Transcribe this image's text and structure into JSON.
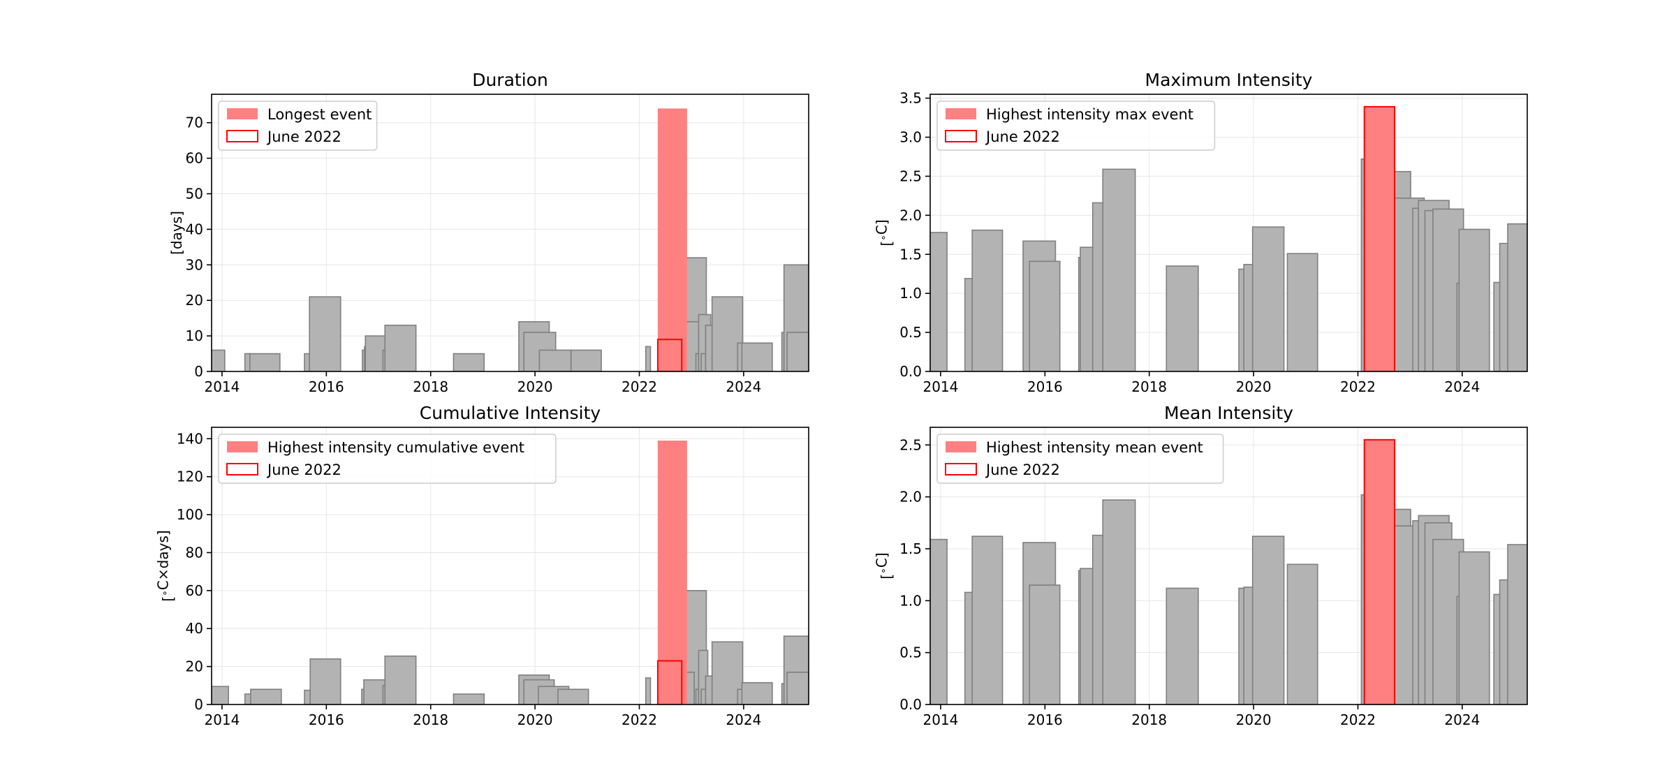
{
  "chart_data": [
    {
      "type": "bar",
      "title": "Duration",
      "ylabel": "[days]",
      "xlabel": "",
      "xlim": [
        "2013-10-20",
        "2025-04-01"
      ],
      "ylim": [
        0,
        78
      ],
      "xticks": [
        "2014",
        "2016",
        "2018",
        "2020",
        "2022",
        "2024"
      ],
      "yticks": [
        0,
        10,
        20,
        30,
        40,
        50,
        60,
        70
      ],
      "grid": true,
      "legend_position": "top-left",
      "legend": [
        "Longest event",
        "June 2022"
      ],
      "events": [
        {
          "start": "2013-10-20",
          "end": "2014-01-20",
          "value": 6
        },
        {
          "start": "2014-06-10",
          "end": "2014-07-20",
          "value": 5
        },
        {
          "start": "2014-07-15",
          "end": "2015-02-10",
          "value": 5
        },
        {
          "start": "2015-08-01",
          "end": "2015-09-05",
          "value": 5
        },
        {
          "start": "2015-09-05",
          "end": "2016-04-10",
          "value": 21
        },
        {
          "start": "2016-09-10",
          "end": "2016-10-10",
          "value": 6
        },
        {
          "start": "2016-09-25",
          "end": "2016-10-25",
          "value": 7
        },
        {
          "start": "2016-10-01",
          "end": "2017-04-10",
          "value": 10
        },
        {
          "start": "2017-02-01",
          "end": "2017-03-01",
          "value": 6
        },
        {
          "start": "2017-02-15",
          "end": "2017-09-20",
          "value": 13
        },
        {
          "start": "2018-06-10",
          "end": "2019-01-10",
          "value": 5
        },
        {
          "start": "2019-09-10",
          "end": "2020-04-10",
          "value": 14
        },
        {
          "start": "2019-10-15",
          "end": "2020-05-25",
          "value": 11
        },
        {
          "start": "2020-02-01",
          "end": "2020-09-10",
          "value": 6
        },
        {
          "start": "2020-09-10",
          "end": "2021-04-10",
          "value": 6
        },
        {
          "start": "2022-02-15",
          "end": "2022-03-20",
          "value": 7
        },
        {
          "start": "2022-09-15",
          "end": "2023-04-15",
          "value": 32
        },
        {
          "start": "2022-10-15",
          "end": "2023-03-01",
          "value": 14
        },
        {
          "start": "2023-02-01",
          "end": "2023-02-20",
          "value": 5
        },
        {
          "start": "2023-02-20",
          "end": "2023-05-15",
          "value": 16
        },
        {
          "start": "2023-03-10",
          "end": "2023-04-10",
          "value": 5
        },
        {
          "start": "2023-04-10",
          "end": "2023-09-01",
          "value": 13
        },
        {
          "start": "2023-05-25",
          "end": "2023-12-25",
          "value": 21
        },
        {
          "start": "2023-11-20",
          "end": "2024-04-20",
          "value": 8
        },
        {
          "start": "2023-12-20",
          "end": "2024-07-20",
          "value": 8
        },
        {
          "start": "2024-09-25",
          "end": "2024-10-20",
          "value": 11
        },
        {
          "start": "2024-10-10",
          "end": "2025-04-10",
          "value": 30
        },
        {
          "start": "2024-11-01",
          "end": "2025-04-01",
          "value": 11
        }
      ],
      "highlight": {
        "label": "Longest event",
        "start": "2022-05-10",
        "end": "2022-12-01",
        "value": 74
      },
      "june_2022": {
        "label": "June 2022",
        "start": "2022-05-10",
        "end": "2022-10-25",
        "value": 9
      }
    },
    {
      "type": "bar",
      "title": "Maximum Intensity",
      "ylabel": "[$^\\circ$C]",
      "xlabel": "",
      "xlim": [
        "2013-10-20",
        "2025-04-01"
      ],
      "ylim": [
        0,
        3.55
      ],
      "xticks": [
        "2014",
        "2016",
        "2018",
        "2020",
        "2022",
        "2024"
      ],
      "yticks": [
        "0.0",
        "0.5",
        "1.0",
        "1.5",
        "2.0",
        "2.5",
        "3.0",
        "3.5"
      ],
      "grid": true,
      "legend_position": "top-left",
      "legend": [
        "Highest intensity max event",
        "June 2022"
      ],
      "events": [
        {
          "start": "2013-10-20",
          "end": "2014-02-15",
          "value": 1.78
        },
        {
          "start": "2014-06-20",
          "end": "2014-09-10",
          "value": 1.19
        },
        {
          "start": "2014-08-10",
          "end": "2015-03-10",
          "value": 1.81
        },
        {
          "start": "2015-08-01",
          "end": "2016-03-15",
          "value": 1.67
        },
        {
          "start": "2015-09-15",
          "end": "2016-04-15",
          "value": 1.41
        },
        {
          "start": "2016-08-25",
          "end": "2016-10-01",
          "value": 1.46
        },
        {
          "start": "2016-09-05",
          "end": "2017-04-05",
          "value": 1.59
        },
        {
          "start": "2016-12-01",
          "end": "2017-06-01",
          "value": 2.16
        },
        {
          "start": "2017-02-10",
          "end": "2017-09-25",
          "value": 2.59
        },
        {
          "start": "2018-05-01",
          "end": "2018-12-10",
          "value": 1.35
        },
        {
          "start": "2019-09-20",
          "end": "2019-11-15",
          "value": 1.31
        },
        {
          "start": "2019-10-25",
          "end": "2020-05-25",
          "value": 1.37
        },
        {
          "start": "2019-12-25",
          "end": "2020-08-01",
          "value": 1.85
        },
        {
          "start": "2020-08-25",
          "end": "2021-03-25",
          "value": 1.51
        },
        {
          "start": "2022-01-25",
          "end": "2022-08-25",
          "value": 2.72
        },
        {
          "start": "2022-06-05",
          "end": "2023-01-05",
          "value": 2.56
        },
        {
          "start": "2022-08-15",
          "end": "2023-02-10",
          "value": 1.35
        },
        {
          "start": "2022-09-15",
          "end": "2023-04-10",
          "value": 2.22
        },
        {
          "start": "2023-01-20",
          "end": "2023-05-20",
          "value": 2.09
        },
        {
          "start": "2023-03-01",
          "end": "2023-10-01",
          "value": 2.19
        },
        {
          "start": "2023-04-15",
          "end": "2023-10-20",
          "value": 2.06
        },
        {
          "start": "2023-06-10",
          "end": "2024-01-10",
          "value": 2.08
        },
        {
          "start": "2023-11-25",
          "end": "2024-01-25",
          "value": 1.13
        },
        {
          "start": "2023-12-10",
          "end": "2024-07-10",
          "value": 1.82
        },
        {
          "start": "2024-08-10",
          "end": "2024-09-25",
          "value": 1.14
        },
        {
          "start": "2024-09-20",
          "end": "2025-01-20",
          "value": 1.64
        },
        {
          "start": "2024-11-15",
          "end": "2025-04-01",
          "value": 1.89
        }
      ],
      "highlight": {
        "label": "Highest intensity max event",
        "start": "2022-02-15",
        "end": "2022-09-15",
        "value": 3.39
      },
      "june_2022": {
        "label": "June 2022",
        "start": "2022-02-15",
        "end": "2022-09-15",
        "value": 3.39
      }
    },
    {
      "type": "bar",
      "title": "Cumulative Intensity",
      "ylabel": "[$^\\circ$C$\\times$days]",
      "xlabel": "",
      "xlim": [
        "2013-10-20",
        "2025-04-01"
      ],
      "ylim": [
        0,
        146
      ],
      "xticks": [
        "2014",
        "2016",
        "2018",
        "2020",
        "2022",
        "2024"
      ],
      "yticks": [
        0,
        20,
        40,
        60,
        80,
        100,
        120,
        140
      ],
      "grid": true,
      "legend_position": "top-left",
      "legend": [
        "Highest intensity cumulative event",
        "June 2022"
      ],
      "events": [
        {
          "start": "2013-10-20",
          "end": "2014-02-15",
          "value": 9.5
        },
        {
          "start": "2014-06-10",
          "end": "2014-08-01",
          "value": 5.5
        },
        {
          "start": "2014-07-20",
          "end": "2015-02-20",
          "value": 8.0
        },
        {
          "start": "2015-08-01",
          "end": "2015-09-10",
          "value": 7.5
        },
        {
          "start": "2015-09-10",
          "end": "2016-04-10",
          "value": 24
        },
        {
          "start": "2016-09-05",
          "end": "2016-10-05",
          "value": 8
        },
        {
          "start": "2016-09-20",
          "end": "2017-03-20",
          "value": 13
        },
        {
          "start": "2017-02-01",
          "end": "2017-03-10",
          "value": 10
        },
        {
          "start": "2017-02-15",
          "end": "2017-09-20",
          "value": 25.5
        },
        {
          "start": "2018-06-10",
          "end": "2019-01-10",
          "value": 5.5
        },
        {
          "start": "2019-09-10",
          "end": "2020-04-10",
          "value": 15.5
        },
        {
          "start": "2019-10-15",
          "end": "2020-05-15",
          "value": 13
        },
        {
          "start": "2020-01-25",
          "end": "2020-08-25",
          "value": 9.5
        },
        {
          "start": "2020-06-10",
          "end": "2021-01-10",
          "value": 8
        },
        {
          "start": "2022-02-15",
          "end": "2022-03-20",
          "value": 14
        },
        {
          "start": "2022-09-15",
          "end": "2023-04-15",
          "value": 60
        },
        {
          "start": "2022-11-10",
          "end": "2023-01-20",
          "value": 17
        },
        {
          "start": "2023-02-01",
          "end": "2023-02-20",
          "value": 8
        },
        {
          "start": "2023-02-20",
          "end": "2023-04-25",
          "value": 28.5
        },
        {
          "start": "2023-03-10",
          "end": "2023-04-10",
          "value": 8
        },
        {
          "start": "2023-04-10",
          "end": "2023-09-01",
          "value": 15
        },
        {
          "start": "2023-05-25",
          "end": "2023-12-25",
          "value": 33
        },
        {
          "start": "2023-11-20",
          "end": "2024-04-20",
          "value": 8
        },
        {
          "start": "2023-12-20",
          "end": "2024-07-20",
          "value": 11.5
        },
        {
          "start": "2024-09-25",
          "end": "2024-10-20",
          "value": 11
        },
        {
          "start": "2024-10-10",
          "end": "2025-04-10",
          "value": 36
        },
        {
          "start": "2024-11-01",
          "end": "2025-04-01",
          "value": 17
        }
      ],
      "highlight": {
        "label": "Highest intensity cumulative event",
        "start": "2022-05-10",
        "end": "2022-12-01",
        "value": 139
      },
      "june_2022": {
        "label": "June 2022",
        "start": "2022-05-10",
        "end": "2022-10-25",
        "value": 23
      }
    },
    {
      "type": "bar",
      "title": "Mean Intensity",
      "ylabel": "[$^\\circ$C]",
      "xlabel": "",
      "xlim": [
        "2013-10-20",
        "2025-04-01"
      ],
      "ylim": [
        0,
        2.67
      ],
      "xticks": [
        "2014",
        "2016",
        "2018",
        "2020",
        "2022",
        "2024"
      ],
      "yticks": [
        "0.0",
        "0.5",
        "1.0",
        "1.5",
        "2.0",
        "2.5"
      ],
      "grid": true,
      "legend_position": "top-left",
      "legend": [
        "Highest intensity mean event",
        "June 2022"
      ],
      "events": [
        {
          "start": "2013-10-20",
          "end": "2014-02-15",
          "value": 1.59
        },
        {
          "start": "2014-06-20",
          "end": "2014-09-10",
          "value": 1.08
        },
        {
          "start": "2014-08-10",
          "end": "2015-03-10",
          "value": 1.62
        },
        {
          "start": "2015-08-01",
          "end": "2016-03-15",
          "value": 1.56
        },
        {
          "start": "2015-09-15",
          "end": "2016-04-15",
          "value": 1.15
        },
        {
          "start": "2016-08-25",
          "end": "2016-10-01",
          "value": 1.29
        },
        {
          "start": "2016-09-05",
          "end": "2017-04-05",
          "value": 1.31
        },
        {
          "start": "2016-12-01",
          "end": "2017-06-01",
          "value": 1.63
        },
        {
          "start": "2017-02-10",
          "end": "2017-09-25",
          "value": 1.97
        },
        {
          "start": "2018-05-01",
          "end": "2018-12-10",
          "value": 1.12
        },
        {
          "start": "2019-09-20",
          "end": "2019-11-15",
          "value": 1.12
        },
        {
          "start": "2019-10-25",
          "end": "2020-05-25",
          "value": 1.13
        },
        {
          "start": "2019-12-25",
          "end": "2020-08-01",
          "value": 1.62
        },
        {
          "start": "2020-08-25",
          "end": "2021-03-25",
          "value": 1.35
        },
        {
          "start": "2022-01-25",
          "end": "2022-08-25",
          "value": 2.02
        },
        {
          "start": "2022-06-05",
          "end": "2023-01-05",
          "value": 1.88
        },
        {
          "start": "2022-08-15",
          "end": "2023-02-10",
          "value": 1.23
        },
        {
          "start": "2022-09-15",
          "end": "2023-04-10",
          "value": 1.72
        },
        {
          "start": "2023-01-20",
          "end": "2023-05-20",
          "value": 1.77
        },
        {
          "start": "2023-03-01",
          "end": "2023-10-01",
          "value": 1.82
        },
        {
          "start": "2023-04-15",
          "end": "2023-10-20",
          "value": 1.75
        },
        {
          "start": "2023-06-10",
          "end": "2024-01-10",
          "value": 1.59
        },
        {
          "start": "2023-11-25",
          "end": "2024-01-25",
          "value": 1.04
        },
        {
          "start": "2023-12-10",
          "end": "2024-07-10",
          "value": 1.47
        },
        {
          "start": "2024-08-10",
          "end": "2024-09-25",
          "value": 1.06
        },
        {
          "start": "2024-09-20",
          "end": "2025-01-20",
          "value": 1.2
        },
        {
          "start": "2024-11-15",
          "end": "2025-04-01",
          "value": 1.54
        }
      ],
      "highlight": {
        "label": "Highest intensity mean event",
        "start": "2022-02-15",
        "end": "2022-09-15",
        "value": 2.55
      },
      "june_2022": {
        "label": "June 2022",
        "start": "2022-02-15",
        "end": "2022-09-15",
        "value": 2.55
      }
    }
  ],
  "colors": {
    "event_fill": "#b3b3b3",
    "event_edge": "#7f7f7f",
    "highlight_fill": "#ff8080",
    "june_edge": "#ff0000",
    "grid": "#e6e6e6"
  }
}
